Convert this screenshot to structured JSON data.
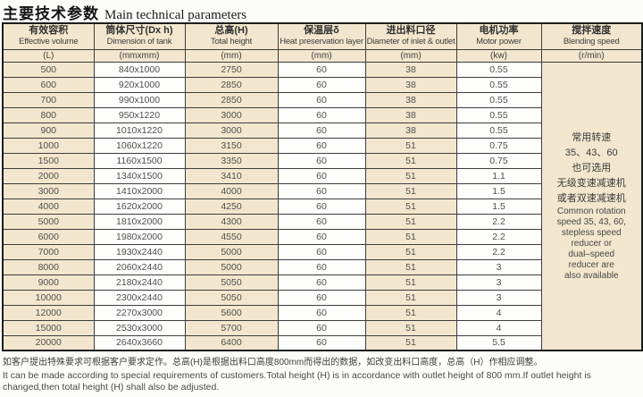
{
  "title": {
    "zh": "主要技术参数",
    "en": "Main technical parameters"
  },
  "colors": {
    "beige": "#f2e7ce",
    "white": "#fdfdfc",
    "border": "#1c1c1c"
  },
  "table": {
    "columns": [
      {
        "zh": "有效容积",
        "en": "Effective volume",
        "unit": "(L)"
      },
      {
        "zh": "筒体尺寸(Dx h)",
        "en": "Dimension of tank",
        "unit": "(mmxmm)"
      },
      {
        "zh": "总高(H)",
        "en": "Total height",
        "unit": "(mm)"
      },
      {
        "zh": "保温层δ",
        "en": "Heat preservation layer",
        "unit": "(mm)"
      },
      {
        "zh": "进出料口径",
        "en": "Diameter of inlet & outlet",
        "unit": "(mm)"
      },
      {
        "zh": "电机功率",
        "en": "Motor power",
        "unit": "(kw)"
      },
      {
        "zh": "搅拌速度",
        "en": "Blending speed",
        "unit": "(r/min)"
      }
    ],
    "rows": [
      [
        "500",
        "840x1000",
        "2750",
        "60",
        "38",
        "0.55"
      ],
      [
        "600",
        "920x1000",
        "2850",
        "60",
        "38",
        "0.55"
      ],
      [
        "700",
        "990x1000",
        "2850",
        "60",
        "38",
        "0.55"
      ],
      [
        "800",
        "950x1220",
        "3000",
        "60",
        "38",
        "0.55"
      ],
      [
        "900",
        "1010x1220",
        "3000",
        "60",
        "38",
        "0.55"
      ],
      [
        "1000",
        "1060x1220",
        "3150",
        "60",
        "51",
        "0.75"
      ],
      [
        "1500",
        "1160x1500",
        "3350",
        "60",
        "51",
        "0.75"
      ],
      [
        "2000",
        "1340x1500",
        "3410",
        "60",
        "51",
        "1.1"
      ],
      [
        "3000",
        "1410x2000",
        "4000",
        "60",
        "51",
        "1.5"
      ],
      [
        "4000",
        "1620x2000",
        "4250",
        "60",
        "51",
        "1.5"
      ],
      [
        "5000",
        "1810x2000",
        "4300",
        "60",
        "51",
        "2.2"
      ],
      [
        "6000",
        "1980x2000",
        "4550",
        "60",
        "51",
        "2.2"
      ],
      [
        "7000",
        "1930x2440",
        "5000",
        "60",
        "51",
        "2.2"
      ],
      [
        "8000",
        "2060x2440",
        "5000",
        "60",
        "51",
        "3"
      ],
      [
        "9000",
        "2180x2440",
        "5050",
        "60",
        "51",
        "3"
      ],
      [
        "10000",
        "2300x2440",
        "5050",
        "60",
        "51",
        "3"
      ],
      [
        "12000",
        "2270x3000",
        "5600",
        "60",
        "51",
        "4"
      ],
      [
        "15000",
        "2530x3000",
        "5700",
        "60",
        "51",
        "4"
      ],
      [
        "20000",
        "2640x3660",
        "6400",
        "60",
        "51",
        "5.5"
      ]
    ],
    "speed_note_lines": [
      "常用转速",
      "35、43、60",
      "也可选用",
      "无级变速减速机",
      "或者双速减速机",
      "Common rotation",
      "speed 35, 43, 60,",
      "stepless speed",
      "reducer or",
      "dual–speed",
      "reducer are",
      "also available"
    ]
  },
  "footnote": {
    "zh": "如客户提出特殊要求可根据客户要求定作。总高(H)是根据出料口高度800mm而得出的数据，如改变出料口高度，总高（H）作相应调整。",
    "en": "It can be made according to special requirements of customers.Total height (H) is in accordance with outlet height of 800 mm.If outlet height is changed,then total height (H) shall also be adjusted."
  }
}
